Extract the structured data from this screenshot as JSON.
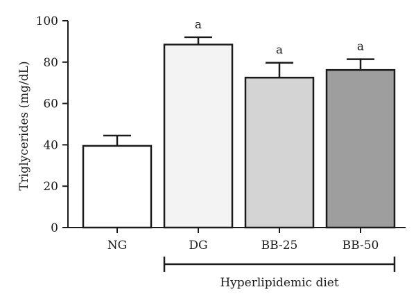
{
  "chart_data": {
    "type": "bar",
    "ylabel": "Triglycerides (mg/dL)",
    "xlabel": "",
    "ylim": [
      0,
      100
    ],
    "yticks": [
      0,
      20,
      40,
      60,
      80,
      100
    ],
    "categories": [
      "NG",
      "DG",
      "BB-25",
      "BB-50"
    ],
    "values": [
      39.5,
      88.5,
      72.5,
      76.2
    ],
    "errors": [
      5,
      3.5,
      7.2,
      5.2
    ],
    "significance": [
      "",
      "a",
      "a",
      "a"
    ],
    "bar_colors": [
      "#ffffff",
      "#f3f3f3",
      "#d4d4d4",
      "#9e9e9e"
    ],
    "group": {
      "label": "Hyperlipidemic diet",
      "spans_categories": [
        "DG",
        "BB-25",
        "BB-50"
      ]
    }
  }
}
